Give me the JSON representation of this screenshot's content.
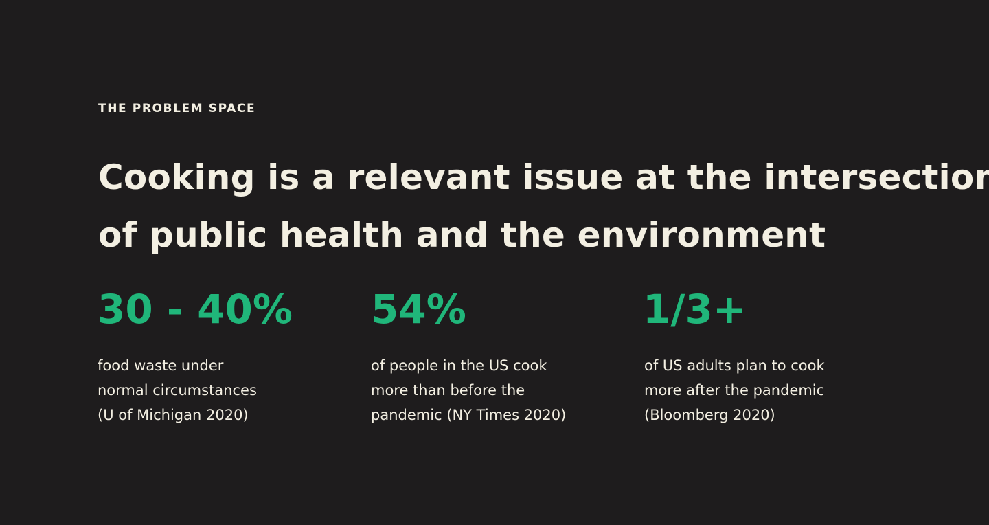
{
  "section": {
    "eyebrow": "THE PROBLEM SPACE",
    "headline_lines": [
      "Cooking is a relevant issue at the intersection",
      "of public health and the environment"
    ]
  },
  "stats": [
    {
      "value": "30 - 40%",
      "description_lines": [
        "food waste under",
        "normal circumstances",
        "(U of Michigan 2020)"
      ]
    },
    {
      "value": "54%",
      "description_lines": [
        "of people in the US cook",
        "more than before the",
        "pandemic (NY Times 2020)"
      ]
    },
    {
      "value": "1/3+",
      "description_lines": [
        "of US adults plan to cook",
        "more after the pandemic",
        "(Bloomberg 2020)"
      ]
    }
  ],
  "colors": {
    "background": "#1e1c1d",
    "text": "#f3efe2",
    "accent": "#20b67a"
  }
}
